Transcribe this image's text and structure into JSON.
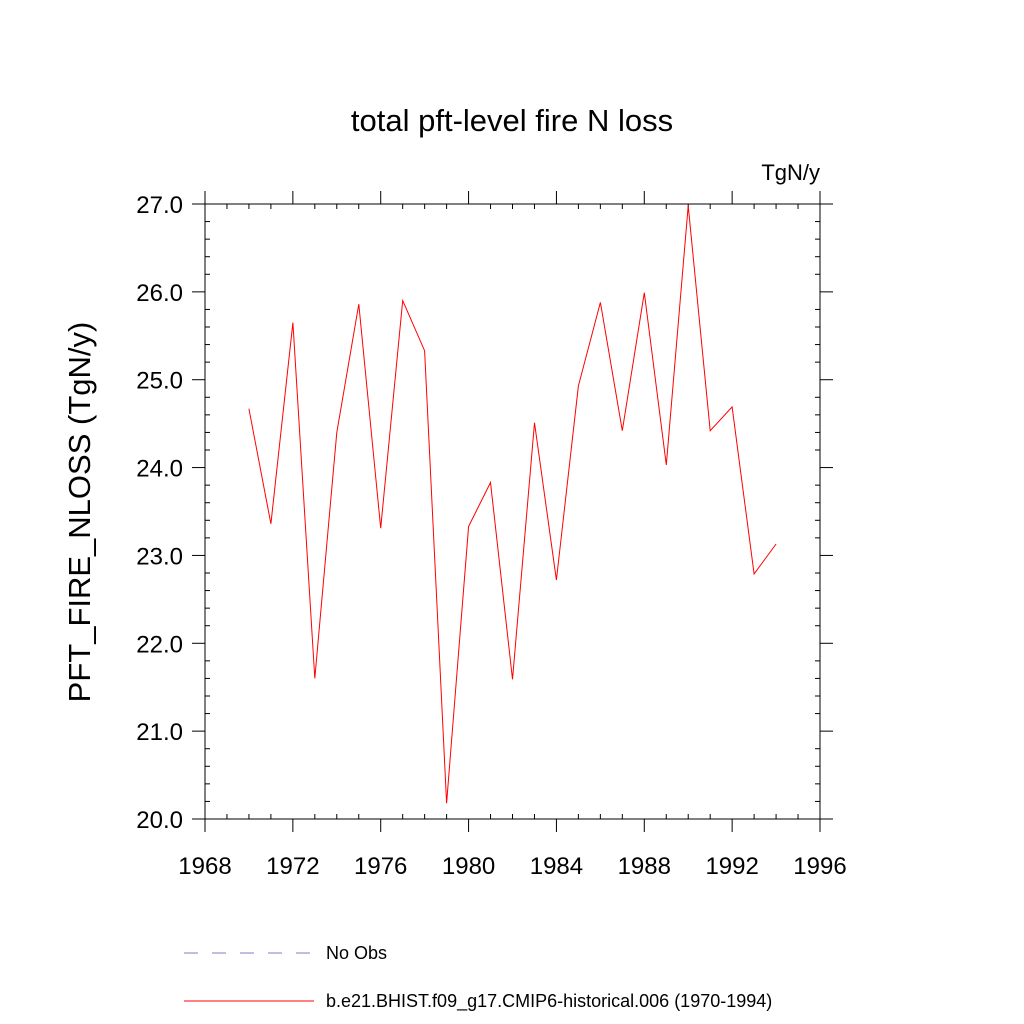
{
  "chart_data": {
    "type": "line",
    "title": "total pft-level fire N loss",
    "units_label": "TgN/y",
    "ylabel": "PFT_FIRE_NLOSS  (TgN/y)",
    "xlabel": "",
    "xlim": [
      1968,
      1996
    ],
    "ylim": [
      20.0,
      27.0
    ],
    "x_ticks": [
      1968,
      1972,
      1976,
      1980,
      1984,
      1988,
      1992,
      1996
    ],
    "x_tick_labels": [
      "1968",
      "1972",
      "1976",
      "1980",
      "1984",
      "1988",
      "1992",
      "1996"
    ],
    "y_ticks": [
      20,
      21,
      22,
      23,
      24,
      25,
      26,
      27
    ],
    "y_tick_labels": [
      "20.0",
      "21.0",
      "22.0",
      "23.0",
      "24.0",
      "25.0",
      "26.0",
      "27.0"
    ],
    "grid": false,
    "series": [
      {
        "name": "b.e21.BHIST.f09_g17.CMIP6-historical.006 (1970-1994)",
        "color": "#ff0000",
        "style": "solid",
        "x": [
          1970,
          1971,
          1972,
          1973,
          1974,
          1975,
          1976,
          1977,
          1978,
          1979,
          1980,
          1981,
          1982,
          1983,
          1984,
          1985,
          1986,
          1987,
          1988,
          1989,
          1990,
          1991,
          1992,
          1993,
          1994
        ],
        "values": [
          24.67,
          23.36,
          25.65,
          21.6,
          24.4,
          25.86,
          23.31,
          25.9,
          25.33,
          20.18,
          23.33,
          23.83,
          21.59,
          24.51,
          22.72,
          24.93,
          25.88,
          24.42,
          25.99,
          24.03,
          26.98,
          24.42,
          24.69,
          22.79,
          23.13
        ]
      }
    ],
    "legend": [
      {
        "label": "No Obs",
        "color": "#7f7fcc",
        "style": "dashed"
      },
      {
        "label": "b.e21.BHIST.f09_g17.CMIP6-historical.006 (1970-1994)",
        "color": "#ff0000",
        "style": "solid"
      }
    ],
    "legend_position": "bottom"
  }
}
